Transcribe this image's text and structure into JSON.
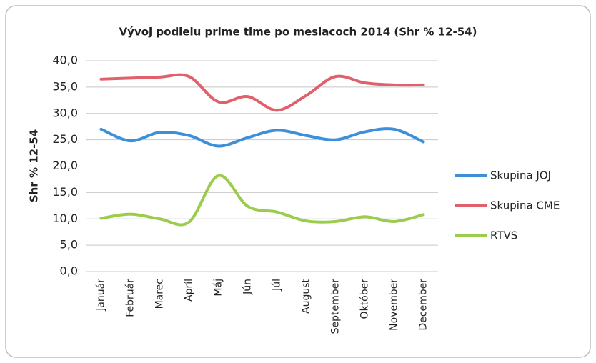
{
  "chart_data": {
    "type": "line",
    "title": "Vývoj podielu prime time po mesiacoch 2014 (Shr % 12-54)",
    "y_label": "Shr % 12-54",
    "categories": [
      "Január",
      "Február",
      "Marec",
      "Apríl",
      "Máj",
      "Jún",
      "Júl",
      "August",
      "September",
      "Október",
      "November",
      "December"
    ],
    "series": [
      {
        "name": "Skupina JOJ",
        "color": "#3d8fd8",
        "values": [
          27.0,
          24.8,
          26.4,
          25.8,
          23.8,
          25.4,
          26.8,
          25.8,
          25.0,
          26.5,
          27.0,
          24.6
        ]
      },
      {
        "name": "Skupina CME",
        "color": "#e0616b",
        "values": [
          36.5,
          36.7,
          36.9,
          37.0,
          32.2,
          33.2,
          30.6,
          33.4,
          37.0,
          35.8,
          35.4,
          35.4
        ]
      },
      {
        "name": "RTVS",
        "color": "#9ccc4c",
        "values": [
          10.1,
          10.9,
          10.0,
          9.4,
          18.2,
          12.4,
          11.3,
          9.6,
          9.5,
          10.4,
          9.5,
          10.8
        ]
      }
    ],
    "ylim": [
      0,
      40
    ],
    "yticks": [
      {
        "value": 0,
        "label": "0,0"
      },
      {
        "value": 5,
        "label": "5,0"
      },
      {
        "value": 10,
        "label": "10,0"
      },
      {
        "value": 15,
        "label": "15,0"
      },
      {
        "value": 20,
        "label": "20,0"
      },
      {
        "value": 25,
        "label": "25,0"
      },
      {
        "value": 30,
        "label": "30,0"
      },
      {
        "value": 35,
        "label": "35,0"
      },
      {
        "value": 40,
        "label": "40,0"
      }
    ],
    "grid": true,
    "legend": "right"
  }
}
